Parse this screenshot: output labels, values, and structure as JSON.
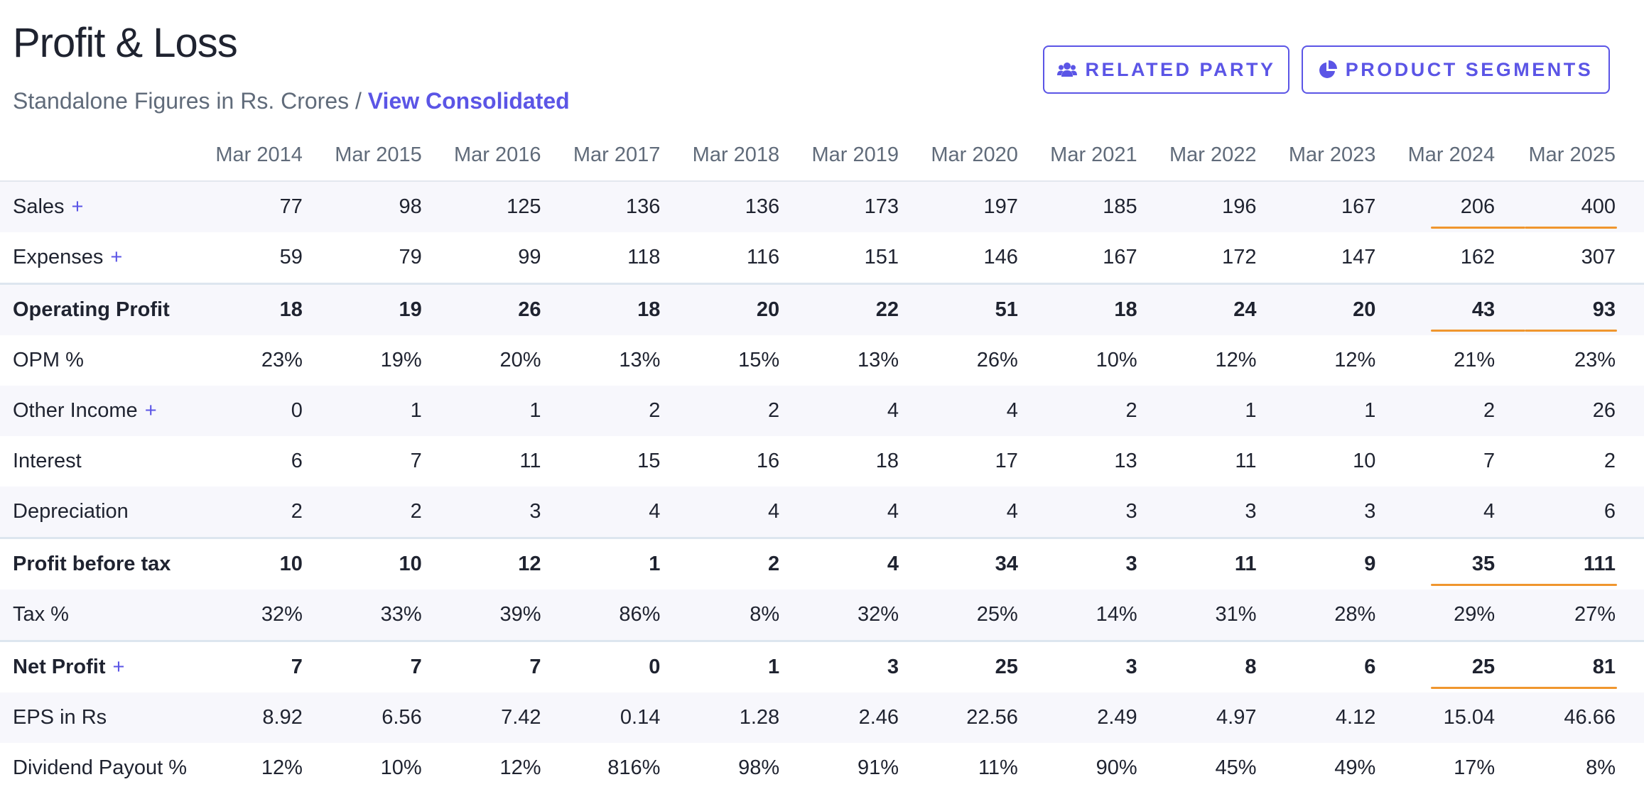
{
  "header": {
    "title": "Profit & Loss",
    "subtitle_text": "Standalone Figures in Rs. Crores",
    "subtitle_separator": " / ",
    "consolidated_link": "View Consolidated"
  },
  "buttons": {
    "related_party": {
      "label": "RELATED PARTY",
      "icon": "users-icon"
    },
    "product_segments": {
      "label": "PRODUCT SEGMENTS",
      "icon": "pie-chart-icon"
    }
  },
  "colors": {
    "accent": "#5b55e6",
    "highlight_underline": "#f0962e",
    "stripe": "#f7f7fc",
    "muted_text": "#606b7a"
  },
  "table": {
    "columns": [
      "Mar 2014",
      "Mar 2015",
      "Mar 2016",
      "Mar 2017",
      "Mar 2018",
      "Mar 2019",
      "Mar 2020",
      "Mar 2021",
      "Mar 2022",
      "Mar 2023",
      "Mar 2024",
      "Mar 2025"
    ],
    "rows": [
      {
        "label": "Sales",
        "expandable": true,
        "bold": false,
        "values": [
          "77",
          "98",
          "125",
          "136",
          "136",
          "173",
          "197",
          "185",
          "196",
          "167",
          "206",
          "400"
        ],
        "highlight": true
      },
      {
        "label": "Expenses",
        "expandable": true,
        "bold": false,
        "values": [
          "59",
          "79",
          "99",
          "118",
          "116",
          "151",
          "146",
          "167",
          "172",
          "147",
          "162",
          "307"
        ],
        "highlight": false
      },
      {
        "label": "Operating Profit",
        "expandable": false,
        "bold": true,
        "values": [
          "18",
          "19",
          "26",
          "18",
          "20",
          "22",
          "51",
          "18",
          "24",
          "20",
          "43",
          "93"
        ],
        "highlight": true
      },
      {
        "label": "OPM %",
        "expandable": false,
        "bold": false,
        "values": [
          "23%",
          "19%",
          "20%",
          "13%",
          "15%",
          "13%",
          "26%",
          "10%",
          "12%",
          "12%",
          "21%",
          "23%"
        ],
        "highlight": false
      },
      {
        "label": "Other Income",
        "expandable": true,
        "bold": false,
        "values": [
          "0",
          "1",
          "1",
          "2",
          "2",
          "4",
          "4",
          "2",
          "1",
          "1",
          "2",
          "26"
        ],
        "highlight": false
      },
      {
        "label": "Interest",
        "expandable": false,
        "bold": false,
        "values": [
          "6",
          "7",
          "11",
          "15",
          "16",
          "18",
          "17",
          "13",
          "11",
          "10",
          "7",
          "2"
        ],
        "highlight": false
      },
      {
        "label": "Depreciation",
        "expandable": false,
        "bold": false,
        "values": [
          "2",
          "2",
          "3",
          "4",
          "4",
          "4",
          "4",
          "3",
          "3",
          "3",
          "4",
          "6"
        ],
        "highlight": false
      },
      {
        "label": "Profit before tax",
        "expandable": false,
        "bold": true,
        "values": [
          "10",
          "10",
          "12",
          "1",
          "2",
          "4",
          "34",
          "3",
          "11",
          "9",
          "35",
          "111"
        ],
        "highlight": true
      },
      {
        "label": "Tax %",
        "expandable": false,
        "bold": false,
        "values": [
          "32%",
          "33%",
          "39%",
          "86%",
          "8%",
          "32%",
          "25%",
          "14%",
          "31%",
          "28%",
          "29%",
          "27%"
        ],
        "highlight": false
      },
      {
        "label": "Net Profit",
        "expandable": true,
        "bold": true,
        "values": [
          "7",
          "7",
          "7",
          "0",
          "1",
          "3",
          "25",
          "3",
          "8",
          "6",
          "25",
          "81"
        ],
        "highlight": true
      },
      {
        "label": "EPS in Rs",
        "expandable": false,
        "bold": false,
        "values": [
          "8.92",
          "6.56",
          "7.42",
          "0.14",
          "1.28",
          "2.46",
          "22.56",
          "2.49",
          "4.97",
          "4.12",
          "15.04",
          "46.66"
        ],
        "highlight": false
      },
      {
        "label": "Dividend Payout %",
        "expandable": false,
        "bold": false,
        "values": [
          "12%",
          "10%",
          "12%",
          "816%",
          "98%",
          "91%",
          "11%",
          "90%",
          "45%",
          "49%",
          "17%",
          "8%"
        ],
        "highlight": false
      }
    ],
    "expand_symbol": "+"
  }
}
